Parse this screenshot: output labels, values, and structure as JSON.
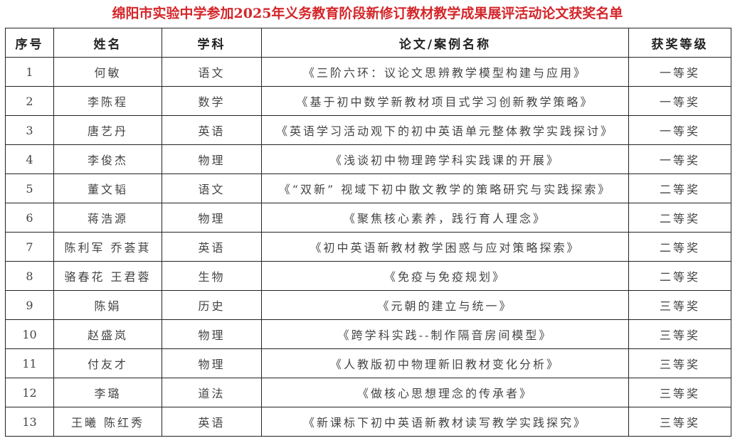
{
  "title": "绵阳市实验中学参加2025年义务教育阶段新修订教材教学成果展评活动论文获奖名单",
  "headers": [
    "序号",
    "姓名",
    "学科",
    "论文/案例名称",
    "获奖等级"
  ],
  "rows": [
    [
      "1",
      "何敏",
      "语文",
      "《三阶六环：议论文思辨教学模型构建与应用》",
      "一等奖"
    ],
    [
      "2",
      "李陈程",
      "数学",
      "《基于初中数学新教材项目式学习创新教学策略》",
      "一等奖"
    ],
    [
      "3",
      "唐艺丹",
      "英语",
      "《英语学习活动观下的初中英语单元整体教学实践探讨》",
      "一等奖"
    ],
    [
      "4",
      "李俊杰",
      "物理",
      "《浅谈初中物理跨学科实践课的开展》",
      "一等奖"
    ],
    [
      "5",
      "董文韬",
      "语文",
      "《“双新” 视域下初中散文教学的策略研究与实践探索》",
      "二等奖"
    ],
    [
      "6",
      "蒋浩源",
      "物理",
      "《聚焦核心素养，践行育人理念》",
      "二等奖"
    ],
    [
      "7",
      "陈利军 乔荟萁",
      "英语",
      "《初中英语新教材教学困惑与应对策略探索》",
      "二等奖"
    ],
    [
      "8",
      "骆春花  王君蓉",
      "生物",
      "《免疫与免疫规划》",
      "二等奖"
    ],
    [
      "9",
      "陈娟",
      "历史",
      "《元朝的建立与统一》",
      "三等奖"
    ],
    [
      "10",
      "赵盛岚",
      "物理",
      "《跨学科实践--制作隔音房间模型》",
      "三等奖"
    ],
    [
      "11",
      "付友才",
      "物理",
      "《人教版初中物理新旧教材变化分析》",
      "三等奖"
    ],
    [
      "12",
      "李璐",
      "道法",
      "《做核心思想理念的传承者》",
      "三等奖"
    ],
    [
      "13",
      "王曦 陈红秀",
      "英语",
      "《新课标下初中英语新教材读写教学实践探究》",
      "三等奖"
    ]
  ],
  "colors": {
    "title": "#d4262a",
    "border": "#222222"
  }
}
